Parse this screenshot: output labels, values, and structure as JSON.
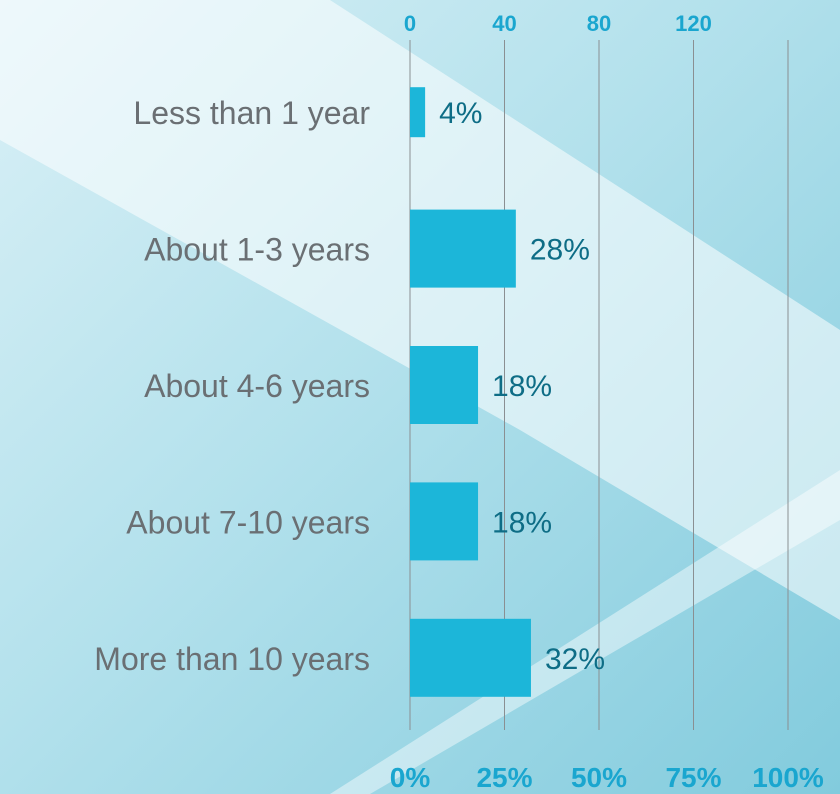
{
  "chart_data": {
    "type": "bar",
    "orientation": "horizontal",
    "categories": [
      "Less than 1 year",
      "About 1-3 years",
      "About 4-6 years",
      "About 7-10 years",
      "More than 10 years"
    ],
    "values": [
      4,
      28,
      18,
      18,
      32
    ],
    "data_labels": [
      "4%",
      "28%",
      "18%",
      "18%",
      "32%"
    ],
    "x_bottom_ticks": [
      "0%",
      "25%",
      "50%",
      "75%",
      "100%"
    ],
    "x_bottom_range": [
      0,
      100
    ],
    "x_top_ticks": [
      "0",
      "40",
      "80",
      "120"
    ],
    "grid": "vertical",
    "colors": {
      "bar": "#1cb6d9",
      "data_label": "#0e6d86",
      "tick_label": "#1aa6cf",
      "category_label": "#6a6f73",
      "grid": "#8a8f92"
    }
  }
}
